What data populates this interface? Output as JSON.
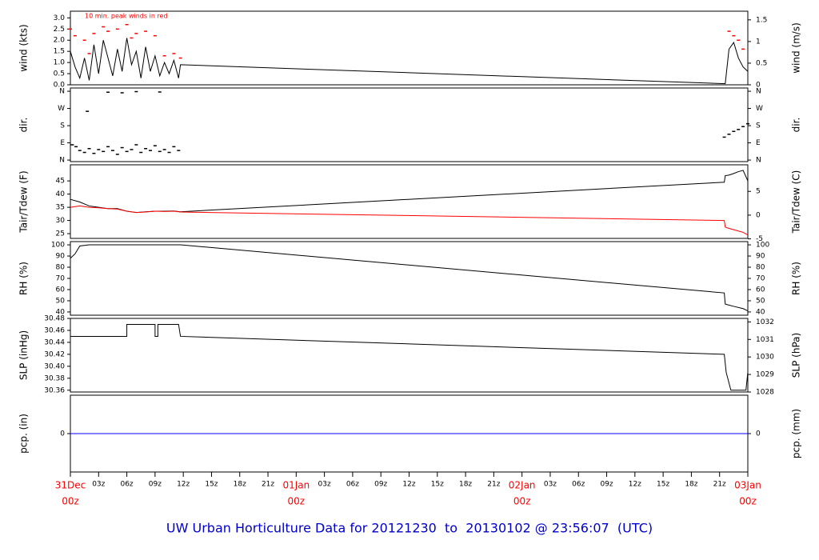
{
  "chart_data": [
    {
      "type": "line",
      "ylabel": "wind (kts)",
      "y2label": "wind (m/s)",
      "annotation": "10 min. peak winds in red",
      "xlim": [
        0,
        72
      ],
      "ylim": [
        0,
        3.3
      ],
      "y2lim": [
        0,
        1.7
      ],
      "yticks": [
        {
          "value": 0,
          "label": "0.0"
        },
        0.5,
        {
          "value": 1,
          "label": "1.0"
        },
        1.5,
        {
          "value": 2,
          "label": "2.0"
        },
        2.5,
        {
          "value": 3,
          "label": "3.0"
        }
      ],
      "y2ticks": [
        0,
        0.5,
        1,
        1.5
      ],
      "x": [
        0,
        0.5,
        1,
        1.5,
        2,
        2.5,
        3,
        3.5,
        4,
        4.5,
        5,
        5.5,
        6,
        6.5,
        7,
        7.5,
        8,
        8.5,
        9,
        9.5,
        10,
        10.5,
        11,
        11.5,
        11.7,
        69.6,
        70,
        70.5,
        71,
        71.5,
        72
      ],
      "series": [
        {
          "style": "line",
          "color": "#000000",
          "values": [
            1.5,
            0.8,
            0.3,
            1.2,
            0.2,
            1.8,
            0.5,
            2.0,
            1.2,
            0.4,
            1.6,
            0.6,
            2.1,
            0.9,
            1.5,
            0.3,
            1.7,
            0.6,
            1.3,
            0.4,
            1.0,
            0.5,
            1.1,
            0.3,
            0.9,
            0.05,
            1.6,
            1.9,
            1.2,
            0.8,
            0.6
          ]
        },
        {
          "style": "points",
          "color": "#ff0000",
          "values": [
            2.5,
            2.2,
            null,
            2.0,
            1.4,
            2.3,
            null,
            2.6,
            2.4,
            null,
            2.5,
            null,
            2.7,
            2.1,
            2.3,
            null,
            2.4,
            null,
            2.2,
            null,
            1.3,
            null,
            1.4,
            null,
            1.2,
            null,
            2.4,
            2.2,
            2.0,
            1.6,
            null
          ]
        }
      ]
    },
    {
      "type": "scatter",
      "ylabel": "dir.",
      "y2label": "dir.",
      "xlim": [
        0,
        72
      ],
      "ylim": [
        -8,
        377
      ],
      "y2lim": [
        -8,
        377
      ],
      "yticks": [
        {
          "value": 0,
          "label": "N"
        },
        {
          "value": 90,
          "label": "E"
        },
        {
          "value": 180,
          "label": "S"
        },
        {
          "value": 270,
          "label": "W"
        },
        {
          "value": 360,
          "label": "N"
        }
      ],
      "y2ticks": [
        {
          "value": 0,
          "label": "N"
        },
        {
          "value": 90,
          "label": "E"
        },
        {
          "value": 180,
          "label": "S"
        },
        {
          "value": 270,
          "label": "W"
        },
        {
          "value": 360,
          "label": "N"
        }
      ],
      "x": [
        0.2,
        0.6,
        1,
        1.5,
        2,
        2.5,
        3,
        3.5,
        4,
        4.5,
        5,
        5.5,
        6,
        6.5,
        7,
        7.5,
        8,
        8.5,
        9,
        9.5,
        10,
        10.5,
        11,
        11.5,
        1.8,
        4,
        5.5,
        7,
        9.5,
        69.5,
        70,
        70.5,
        71,
        71.5,
        72
      ],
      "series": [
        {
          "color": "#000000",
          "values": [
            80,
            70,
            50,
            40,
            60,
            35,
            55,
            45,
            70,
            50,
            30,
            65,
            45,
            55,
            80,
            40,
            60,
            50,
            75,
            45,
            55,
            40,
            70,
            50,
            255,
            355,
            352,
            358,
            356,
            120,
            135,
            150,
            160,
            175,
            190
          ]
        }
      ]
    },
    {
      "type": "line",
      "ylabel": "Tair/Tdew (F)",
      "y2label": "Tair/Tdew (C)",
      "xlim": [
        0,
        72
      ],
      "ylim": [
        23.2,
        51.1
      ],
      "y2lim": [
        -4.9,
        10.6
      ],
      "yticks": [
        25,
        30,
        35,
        40,
        45
      ],
      "y2ticks": [
        -5,
        0,
        5
      ],
      "x": [
        0,
        1,
        2,
        3,
        4,
        5,
        6,
        7,
        8,
        9,
        10,
        11,
        11.7,
        69.5,
        69.6,
        70,
        70.5,
        71,
        71.5,
        72
      ],
      "series": [
        {
          "style": "line",
          "color": "#000000",
          "values": [
            38,
            37,
            35.5,
            35,
            34.5,
            34.5,
            33.5,
            33,
            33.3,
            33.5,
            33.5,
            33.6,
            33.3,
            44.5,
            47,
            47.2,
            47.8,
            48.5,
            49,
            45
          ]
        },
        {
          "style": "line",
          "color": "#ff0000",
          "values": [
            35,
            35.5,
            35,
            34.8,
            34.5,
            34.3,
            33.5,
            33,
            33.2,
            33.5,
            33.4,
            33.5,
            33.2,
            30,
            27.5,
            27,
            26.5,
            26,
            25.5,
            24.5
          ]
        }
      ]
    },
    {
      "type": "line",
      "ylabel": "RH (%)",
      "y2label": "RH (%)",
      "xlim": [
        0,
        72
      ],
      "ylim": [
        37.1,
        102.9
      ],
      "y2lim": [
        37.1,
        102.9
      ],
      "yticks": [
        40,
        50,
        60,
        70,
        80,
        90,
        100
      ],
      "y2ticks": [
        40,
        50,
        60,
        70,
        80,
        90,
        100
      ],
      "x": [
        0,
        0.5,
        1,
        2,
        11.7,
        69.5,
        69.6,
        70.5,
        71.5,
        72
      ],
      "series": [
        {
          "style": "line",
          "color": "#000000",
          "values": [
            88,
            92,
            99,
            100,
            100,
            57,
            47,
            45,
            43,
            41
          ]
        }
      ]
    },
    {
      "type": "line",
      "ylabel": "SLP (inHg)",
      "y2label": "SLP (hPa)",
      "xlim": [
        0,
        72
      ],
      "ylim": [
        30.357,
        30.48
      ],
      "y2lim": [
        1028.0,
        1032.2
      ],
      "yticks": [
        30.36,
        30.38,
        {
          "value": 30.4,
          "label": "30.40"
        },
        30.42,
        30.44,
        30.46,
        30.48
      ],
      "y2ticks": [
        1028,
        1029,
        1030,
        1031,
        1032
      ],
      "x": [
        0,
        6,
        6,
        9,
        9,
        9.3,
        9.3,
        9.5,
        9.5,
        11.5,
        11.7,
        69.5,
        69.7,
        70.2,
        71.8,
        72
      ],
      "series": [
        {
          "style": "line",
          "color": "#000000",
          "values": [
            30.45,
            30.45,
            30.47,
            30.47,
            30.45,
            30.45,
            30.47,
            30.47,
            30.47,
            30.47,
            30.45,
            30.42,
            30.39,
            30.36,
            30.36,
            30.39
          ]
        }
      ]
    },
    {
      "type": "line",
      "ylabel": "pcp. (in)",
      "y2label": "pcp. (mm)",
      "xlim": [
        0,
        72
      ],
      "ylim": [
        -1,
        1
      ],
      "y2lim": [
        -1,
        1
      ],
      "yticks": [
        0
      ],
      "y2ticks": [
        0
      ],
      "x": [
        0,
        72
      ],
      "series": [
        {
          "style": "line",
          "color": "#0000ff",
          "values": [
            0,
            0
          ]
        }
      ],
      "xticks": [
        {
          "value": 0,
          "label": "00z"
        },
        {
          "value": 3,
          "label": "03z"
        },
        {
          "value": 6,
          "label": "06z"
        },
        {
          "value": 9,
          "label": "09z"
        },
        {
          "value": 12,
          "label": "12z"
        },
        {
          "value": 15,
          "label": "15z"
        },
        {
          "value": 18,
          "label": "18z"
        },
        {
          "value": 21,
          "label": "21z"
        },
        {
          "value": 24,
          "label": "00z"
        },
        {
          "value": 27,
          "label": "03z"
        },
        {
          "value": 30,
          "label": "06z"
        },
        {
          "value": 33,
          "label": "09z"
        },
        {
          "value": 36,
          "label": "12z"
        },
        {
          "value": 39,
          "label": "15z"
        },
        {
          "value": 42,
          "label": "18z"
        },
        {
          "value": 45,
          "label": "21z"
        },
        {
          "value": 48,
          "label": "00z"
        },
        {
          "value": 51,
          "label": "03z"
        },
        {
          "value": 54,
          "label": "06z"
        },
        {
          "value": 57,
          "label": "09z"
        },
        {
          "value": 60,
          "label": "12z"
        },
        {
          "value": 63,
          "label": "15z"
        },
        {
          "value": 66,
          "label": "18z"
        },
        {
          "value": 69,
          "label": "21z"
        },
        {
          "value": 72,
          "label": "00z"
        }
      ],
      "day_labels": [
        {
          "value": 0,
          "label": "31Dec"
        },
        {
          "value": 24,
          "label": "01Jan"
        },
        {
          "value": 48,
          "label": "02Jan"
        },
        {
          "value": 72,
          "label": "03Jan"
        }
      ]
    }
  ],
  "footer": {
    "title": "UW Urban Horticulture Data for 20121230  to  20130102 @ 23:56:07  (UTC)"
  }
}
